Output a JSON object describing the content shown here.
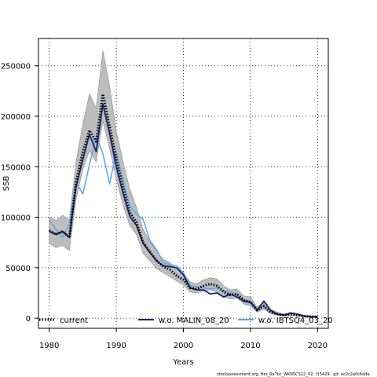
{
  "chart_data": {
    "type": "line",
    "xlabel": "Years",
    "ylabel": "SSB",
    "xlim": [
      1978.4,
      2021.6
    ],
    "ylim": [
      -10000,
      277000
    ],
    "xticks": [
      1980,
      1990,
      2000,
      2010,
      2020
    ],
    "yticks": [
      0,
      50000,
      100000,
      150000,
      200000,
      250000
    ],
    "grid": true,
    "x": [
      1980,
      1981,
      1982,
      1983,
      1984,
      1985,
      1986,
      1987,
      1988,
      1989,
      1990,
      1991,
      1992,
      1993,
      1994,
      1995,
      1996,
      1997,
      1998,
      1999,
      2000,
      2001,
      2002,
      2003,
      2004,
      2005,
      2006,
      2007,
      2008,
      2009,
      2010,
      2011,
      2012,
      2013,
      2014,
      2015,
      2016,
      2017,
      2018,
      2019,
      2020
    ],
    "series": [
      {
        "name": "current",
        "color": "#000000",
        "style": "dotted",
        "values": [
          87000,
          83000,
          86000,
          80000,
          135000,
          165000,
          186000,
          175000,
          222000,
          190000,
          158000,
          130000,
          105000,
          95000,
          75000,
          66000,
          57000,
          51000,
          48000,
          42000,
          38000,
          30000,
          29000,
          32000,
          34000,
          32000,
          26000,
          23000,
          24000,
          18000,
          16000,
          8000,
          12000,
          6000,
          4000,
          3000,
          4000,
          3000,
          2000,
          1500,
          1500
        ],
        "lower": [
          74000,
          70000,
          72000,
          67000,
          118000,
          147000,
          166000,
          155000,
          195000,
          168000,
          138000,
          112000,
          92000,
          83000,
          64000,
          57000,
          49000,
          45000,
          41000,
          37000,
          33000,
          26000,
          25000,
          27000,
          28000,
          26000,
          21000,
          19000,
          20000,
          14000,
          12000,
          6000,
          9000,
          4500,
          3000,
          2000,
          3000,
          2000,
          1500,
          1000,
          1000
        ],
        "upper": [
          100000,
          97000,
          102000,
          97000,
          155000,
          192000,
          222000,
          208000,
          265000,
          230000,
          185000,
          155000,
          128000,
          110000,
          88000,
          76000,
          66000,
          58000,
          55000,
          48000,
          44000,
          36000,
          34000,
          38000,
          40000,
          39000,
          32000,
          28000,
          29000,
          22000,
          21000,
          11000,
          16000,
          8500,
          6000,
          4000,
          6000,
          4500,
          3000,
          2200,
          2200
        ]
      },
      {
        "name": "w.o. MALIN_08_20",
        "color": "#1f1f6e",
        "style": "solid",
        "values": [
          86000,
          83000,
          86000,
          80000,
          130000,
          157000,
          182000,
          165000,
          212000,
          183000,
          150000,
          124000,
          101000,
          92000,
          74000,
          65000,
          57000,
          52000,
          51000,
          50000,
          43000,
          30000,
          28000,
          28000,
          24000,
          25000,
          21000,
          24000,
          21000,
          17000,
          16000,
          8000,
          17000,
          8000,
          4000,
          3000,
          5000,
          4000,
          2000,
          1500,
          1500
        ]
      },
      {
        "name": "w.o. IBTSQ4_03_20",
        "color": "#5aaee8",
        "style": "solid",
        "values": [
          97000,
          88000,
          80000,
          93000,
          135000,
          123000,
          152000,
          180000,
          163000,
          133000,
          165000,
          137000,
          111000,
          103000,
          98000,
          77000,
          68000,
          55000,
          53000,
          52000,
          45000,
          32000,
          31000,
          30000,
          29000,
          30000,
          27000,
          26000,
          23000,
          16000,
          15000,
          8000,
          12000,
          6000,
          4000,
          3000,
          5000,
          3000,
          2000,
          1500,
          1500
        ]
      }
    ],
    "legend_position": "bottom"
  },
  "footer_text": "stockassessment.org, Her_6a7bc_WKNSCS22_V2, r15429 , git: ec2c2a0c6dde"
}
